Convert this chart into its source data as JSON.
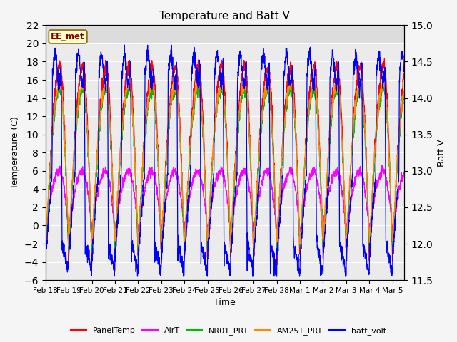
{
  "title": "Temperature and Batt V",
  "xlabel": "Time",
  "ylabel_left": "Temperature (C)",
  "ylabel_right": "Batt V",
  "ylim_left": [
    -6,
    22
  ],
  "ylim_right": [
    11.5,
    15.0
  ],
  "annotation": "EE_met",
  "xtick_labels": [
    "Feb 18",
    "Feb 19",
    "Feb 20",
    "Feb 21",
    "Feb 22",
    "Feb 23",
    "Feb 24",
    "Feb 25",
    "Feb 26",
    "Feb 27",
    "Feb 28",
    "Mar 1",
    "Mar 2",
    "Mar 3",
    "Mar 4",
    "Mar 5"
  ],
  "series_colors": {
    "PanelTemp": "#ff0000",
    "AirT": "#ff00ff",
    "NR01_PRT": "#00bb00",
    "AM25T_PRT": "#ff8800",
    "batt_volt": "#0000ff"
  },
  "legend_entries": [
    "PanelTemp",
    "AirT",
    "NR01_PRT",
    "AM25T_PRT",
    "batt_volt"
  ],
  "shaded_region_color": "#dcdcdc",
  "plot_bg_color": "#ebebeb",
  "fig_bg_color": "#f5f5f5",
  "grid_color": "#ffffff",
  "num_days": 15.5,
  "points_per_day": 144,
  "title_fontsize": 11
}
